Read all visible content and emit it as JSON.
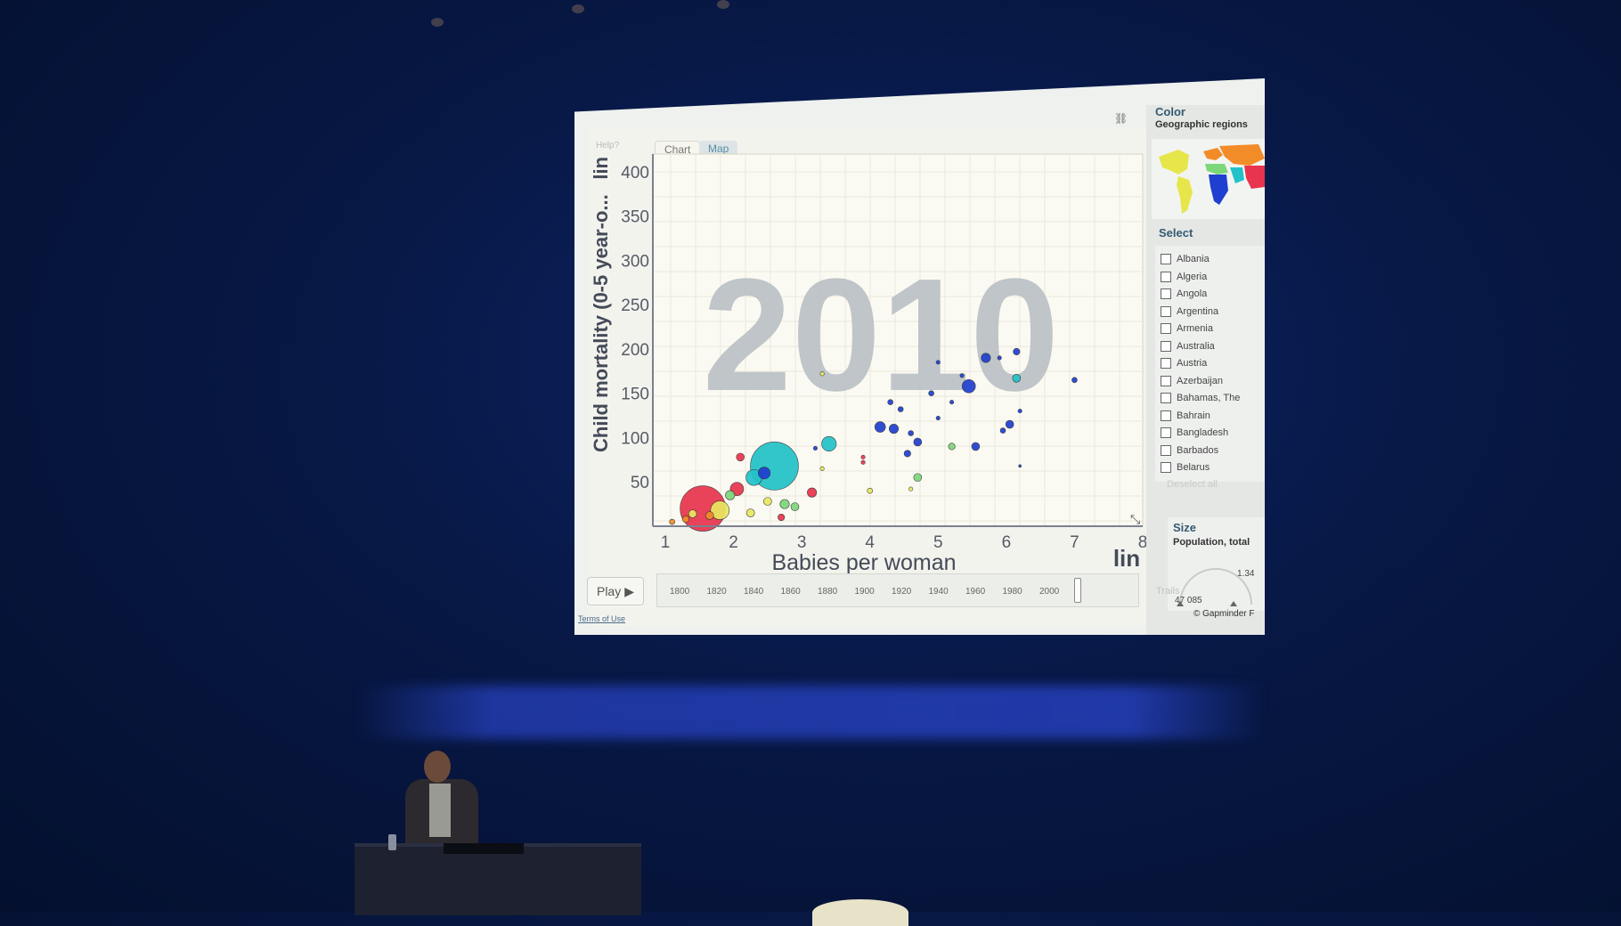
{
  "scene": {
    "colors": {
      "background": "#071845",
      "stage_glow": "#3450eb",
      "screen": "#eef1ee"
    }
  },
  "app": {
    "help_label": "Help?",
    "tabs": [
      {
        "label": "Chart",
        "active": true
      },
      {
        "label": "Map",
        "active": false
      }
    ],
    "link_icon": "link-icon",
    "play_label": "Play",
    "trails_label": "Trails",
    "terms_label": "Terms of Use",
    "copyright": "© Gapminder F",
    "timeline": {
      "labels": [
        "1800",
        "1820",
        "1840",
        "1860",
        "1880",
        "1900",
        "1920",
        "1940",
        "1960",
        "1980",
        "2000"
      ],
      "current_year": 2010
    }
  },
  "side_panel": {
    "color_title": "Color",
    "color_subtitle": "Geographic regions",
    "select_title": "Select",
    "countries": [
      "Albania",
      "Algeria",
      "Angola",
      "Argentina",
      "Armenia",
      "Australia",
      "Austria",
      "Azerbaijan",
      "Bahamas, The",
      "Bahrain",
      "Bangladesh",
      "Barbados",
      "Belarus"
    ],
    "deselect_label": "Deselect all",
    "size_title": "Size",
    "size_subtitle": "Population, total",
    "size_min": "47 085",
    "size_max": "1.34"
  },
  "chart_data": {
    "type": "scatter",
    "title": "",
    "year_watermark": "2010",
    "xlabel": "Babies per woman",
    "ylabel": "Child mortality (0-5 year-o...",
    "x_scale_label": "lin",
    "y_scale_label": "lin",
    "xlim": [
      1,
      8
    ],
    "ylim": [
      0,
      420
    ],
    "xticks": [
      1,
      2,
      3,
      4,
      5,
      6,
      7,
      8
    ],
    "yticks": [
      50,
      100,
      150,
      200,
      250,
      300,
      350,
      400
    ],
    "grid": true,
    "region_colors": {
      "sub_saharan_africa": "#1f3fd0",
      "south_asia": "#22c2c8",
      "east_asia_pacific": "#e8344e",
      "americas": "#e8e860",
      "europe_central_asia": "#f28c28",
      "middle_east_north_africa": "#7ed67a"
    },
    "points": [
      {
        "x": 1.55,
        "y": 20,
        "size": 34,
        "region": "east_asia_pacific"
      },
      {
        "x": 2.6,
        "y": 68,
        "size": 36,
        "region": "south_asia"
      },
      {
        "x": 1.8,
        "y": 18,
        "size": 14,
        "region": "americas"
      },
      {
        "x": 2.05,
        "y": 42,
        "size": 10,
        "region": "east_asia_pacific"
      },
      {
        "x": 2.3,
        "y": 55,
        "size": 12,
        "region": "south_asia"
      },
      {
        "x": 2.45,
        "y": 60,
        "size": 9,
        "region": "sub_saharan_africa"
      },
      {
        "x": 2.1,
        "y": 78,
        "size": 6,
        "region": "east_asia_pacific"
      },
      {
        "x": 3.4,
        "y": 93,
        "size": 11,
        "region": "south_asia"
      },
      {
        "x": 3.15,
        "y": 38,
        "size": 7,
        "region": "east_asia_pacific"
      },
      {
        "x": 2.75,
        "y": 25,
        "size": 7,
        "region": "middle_east_north_africa"
      },
      {
        "x": 2.9,
        "y": 22,
        "size": 6,
        "region": "middle_east_north_africa"
      },
      {
        "x": 1.95,
        "y": 35,
        "size": 7,
        "region": "middle_east_north_africa"
      },
      {
        "x": 1.4,
        "y": 14,
        "size": 6,
        "region": "americas"
      },
      {
        "x": 1.65,
        "y": 12,
        "size": 6,
        "region": "europe_central_asia"
      },
      {
        "x": 1.3,
        "y": 8,
        "size": 5,
        "region": "europe_central_asia"
      },
      {
        "x": 2.25,
        "y": 15,
        "size": 6,
        "region": "americas"
      },
      {
        "x": 2.5,
        "y": 28,
        "size": 6,
        "region": "americas"
      },
      {
        "x": 2.7,
        "y": 10,
        "size": 5,
        "region": "east_asia_pacific"
      },
      {
        "x": 1.1,
        "y": 5,
        "size": 4,
        "region": "europe_central_asia"
      },
      {
        "x": 3.3,
        "y": 172,
        "size": 3,
        "region": "americas"
      },
      {
        "x": 3.3,
        "y": 65,
        "size": 3,
        "region": "americas"
      },
      {
        "x": 3.9,
        "y": 78,
        "size": 3,
        "region": "east_asia_pacific"
      },
      {
        "x": 4.0,
        "y": 40,
        "size": 4,
        "region": "americas"
      },
      {
        "x": 4.7,
        "y": 55,
        "size": 6,
        "region": "middle_east_north_africa"
      },
      {
        "x": 5.2,
        "y": 90,
        "size": 5,
        "region": "middle_east_north_africa"
      },
      {
        "x": 3.2,
        "y": 88,
        "size": 3,
        "region": "sub_saharan_africa"
      },
      {
        "x": 4.15,
        "y": 112,
        "size": 8,
        "region": "sub_saharan_africa"
      },
      {
        "x": 4.35,
        "y": 110,
        "size": 7,
        "region": "sub_saharan_africa"
      },
      {
        "x": 4.3,
        "y": 140,
        "size": 4,
        "region": "sub_saharan_africa"
      },
      {
        "x": 4.45,
        "y": 132,
        "size": 4,
        "region": "sub_saharan_africa"
      },
      {
        "x": 4.6,
        "y": 105,
        "size": 4,
        "region": "sub_saharan_africa"
      },
      {
        "x": 4.7,
        "y": 95,
        "size": 6,
        "region": "sub_saharan_africa"
      },
      {
        "x": 4.55,
        "y": 82,
        "size": 5,
        "region": "sub_saharan_africa"
      },
      {
        "x": 4.9,
        "y": 150,
        "size": 4,
        "region": "sub_saharan_africa"
      },
      {
        "x": 5.0,
        "y": 185,
        "size": 3,
        "region": "sub_saharan_africa"
      },
      {
        "x": 5.2,
        "y": 140,
        "size": 3,
        "region": "sub_saharan_africa"
      },
      {
        "x": 5.45,
        "y": 158,
        "size": 10,
        "region": "sub_saharan_africa"
      },
      {
        "x": 5.55,
        "y": 90,
        "size": 6,
        "region": "sub_saharan_africa"
      },
      {
        "x": 5.35,
        "y": 170,
        "size": 3,
        "region": "sub_saharan_africa"
      },
      {
        "x": 5.7,
        "y": 190,
        "size": 7,
        "region": "sub_saharan_africa"
      },
      {
        "x": 5.9,
        "y": 190,
        "size": 3,
        "region": "sub_saharan_africa"
      },
      {
        "x": 6.15,
        "y": 197,
        "size": 5,
        "region": "sub_saharan_africa"
      },
      {
        "x": 6.15,
        "y": 167,
        "size": 6,
        "region": "south_asia"
      },
      {
        "x": 6.05,
        "y": 115,
        "size": 6,
        "region": "sub_saharan_africa"
      },
      {
        "x": 5.95,
        "y": 108,
        "size": 4,
        "region": "sub_saharan_africa"
      },
      {
        "x": 6.2,
        "y": 130,
        "size": 3,
        "region": "sub_saharan_africa"
      },
      {
        "x": 7.0,
        "y": 165,
        "size": 4,
        "region": "sub_saharan_africa"
      },
      {
        "x": 6.2,
        "y": 68,
        "size": 2,
        "region": "sub_saharan_africa"
      },
      {
        "x": 3.9,
        "y": 72,
        "size": 3,
        "region": "east_asia_pacific"
      },
      {
        "x": 4.6,
        "y": 42,
        "size": 3,
        "region": "americas"
      },
      {
        "x": 5.0,
        "y": 122,
        "size": 3,
        "region": "sub_saharan_africa"
      }
    ]
  }
}
